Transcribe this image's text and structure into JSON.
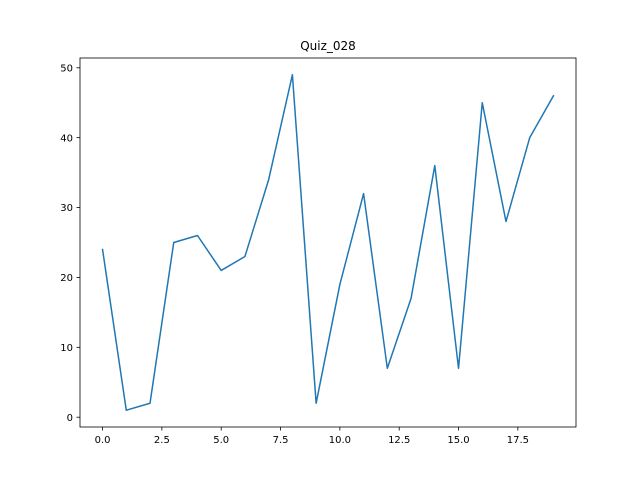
{
  "chart_data": {
    "type": "line",
    "title": "Quiz_028",
    "xlabel": "",
    "ylabel": "",
    "x": [
      0,
      1,
      2,
      3,
      4,
      5,
      6,
      7,
      8,
      9,
      10,
      11,
      12,
      13,
      14,
      15,
      16,
      17,
      18,
      19
    ],
    "series": [
      {
        "values": [
          24,
          1,
          2,
          25,
          26,
          21,
          23,
          34,
          49,
          2,
          19,
          32,
          7,
          17,
          36,
          7,
          45,
          28,
          40,
          46
        ]
      }
    ],
    "xlim": [
      -0.95,
      19.95
    ],
    "ylim": [
      -1.4,
      51.4
    ],
    "xticks": [
      0,
      2.5,
      5,
      7.5,
      10,
      12.5,
      15,
      17.5
    ],
    "xtick_labels": [
      "0.0",
      "2.5",
      "5.0",
      "7.5",
      "10.0",
      "12.5",
      "15.0",
      "17.5"
    ],
    "yticks": [
      0,
      10,
      20,
      30,
      40,
      50
    ],
    "ytick_labels": [
      "0",
      "10",
      "20",
      "30",
      "40",
      "50"
    ],
    "grid": false,
    "colors": {
      "line": "#1f77b4",
      "axes": "#000000",
      "background": "#ffffff"
    }
  }
}
